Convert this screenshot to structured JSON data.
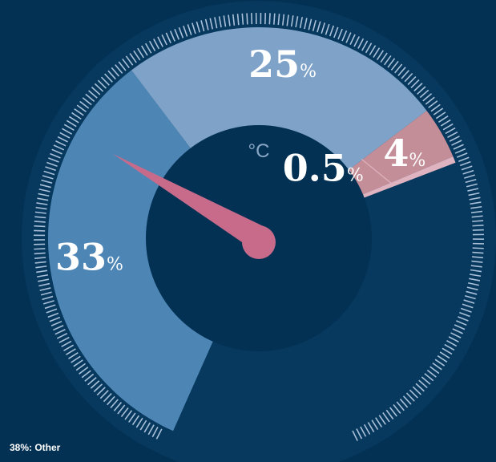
{
  "chart_data": {
    "type": "pie",
    "unit_label": "°C",
    "slices": [
      {
        "label": "33",
        "pct_symbol": "%",
        "value": 33,
        "color": "#4d86b5"
      },
      {
        "label": "25",
        "pct_symbol": "%",
        "value": 25,
        "color": "#7fa3c8"
      },
      {
        "label": "4",
        "pct_symbol": "%",
        "value": 4,
        "color": "#c48e98"
      },
      {
        "label": "0.5",
        "pct_symbol": "%",
        "value": 0.5,
        "color": "#e0b3c0"
      }
    ],
    "needle_color": "#c86a8a",
    "footnote": "38%: Other"
  }
}
